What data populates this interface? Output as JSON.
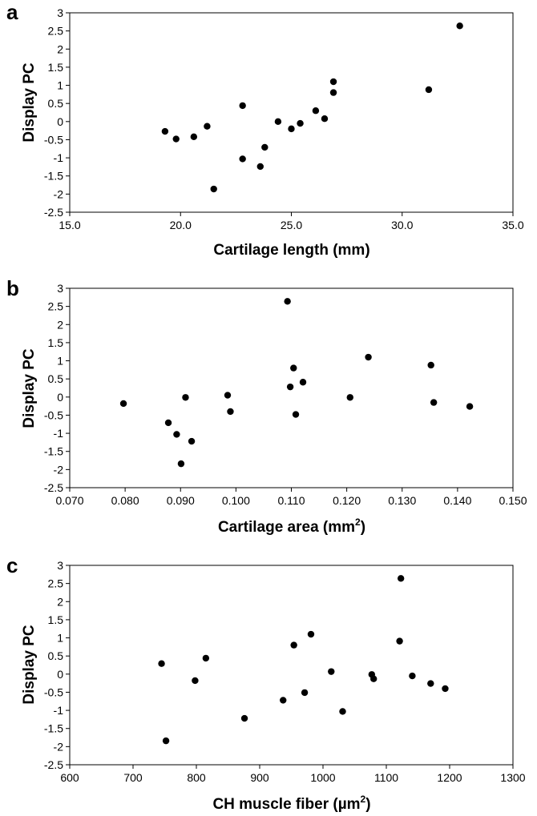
{
  "chart_data": [
    {
      "panel": "a",
      "type": "scatter",
      "xlabel": "Cartilage length (mm)",
      "xlabel_sup": "",
      "xlabel_suffix": "",
      "ylabel": "Display PC",
      "xlim": [
        15.0,
        35.0
      ],
      "ylim": [
        -2.5,
        3
      ],
      "xticks": [
        "15.0",
        "20.0",
        "25.0",
        "30.0",
        "35.0"
      ],
      "yticks": [
        "3",
        "2.5",
        "2",
        "1.5",
        "1",
        "0.5",
        "0",
        "-0.5",
        "-1",
        "-1.5",
        "-2",
        "-2.5"
      ],
      "points": [
        {
          "x": 19.3,
          "y": -0.27
        },
        {
          "x": 19.8,
          "y": -0.48
        },
        {
          "x": 20.6,
          "y": -0.42
        },
        {
          "x": 21.2,
          "y": -0.13
        },
        {
          "x": 21.5,
          "y": -1.86
        },
        {
          "x": 22.8,
          "y": 0.44
        },
        {
          "x": 22.8,
          "y": -1.03
        },
        {
          "x": 23.6,
          "y": -1.24
        },
        {
          "x": 23.8,
          "y": -0.71
        },
        {
          "x": 24.4,
          "y": 0.0
        },
        {
          "x": 25.0,
          "y": -0.2
        },
        {
          "x": 25.4,
          "y": -0.05
        },
        {
          "x": 26.1,
          "y": 0.3
        },
        {
          "x": 26.5,
          "y": 0.08
        },
        {
          "x": 26.9,
          "y": 1.1
        },
        {
          "x": 26.9,
          "y": 0.8
        },
        {
          "x": 31.2,
          "y": 0.88
        },
        {
          "x": 32.6,
          "y": 2.64
        }
      ]
    },
    {
      "panel": "b",
      "type": "scatter",
      "xlabel": "Cartilage area (mm",
      "xlabel_sup": "2",
      "xlabel_suffix": ")",
      "ylabel": "Display PC",
      "xlim": [
        0.07,
        0.15
      ],
      "ylim": [
        -2.5,
        3
      ],
      "xticks": [
        "0.070",
        "0.080",
        "0.090",
        "0.100",
        "0.110",
        "0.120",
        "0.130",
        "0.140",
        "0.150"
      ],
      "yticks": [
        "3",
        "2.5",
        "2",
        "1.5",
        "1",
        "0.5",
        "0",
        "-0.5",
        "-1",
        "-1.5",
        "-2",
        "-2.5"
      ],
      "points": [
        {
          "x": 0.0797,
          "y": -0.18
        },
        {
          "x": 0.0878,
          "y": -0.71
        },
        {
          "x": 0.0893,
          "y": -1.03
        },
        {
          "x": 0.0901,
          "y": -1.84
        },
        {
          "x": 0.0909,
          "y": -0.01
        },
        {
          "x": 0.092,
          "y": -1.22
        },
        {
          "x": 0.0985,
          "y": 0.05
        },
        {
          "x": 0.099,
          "y": -0.4
        },
        {
          "x": 0.1093,
          "y": 2.64
        },
        {
          "x": 0.1098,
          "y": 0.28
        },
        {
          "x": 0.1104,
          "y": 0.8
        },
        {
          "x": 0.1108,
          "y": -0.48
        },
        {
          "x": 0.1121,
          "y": 0.41
        },
        {
          "x": 0.1206,
          "y": -0.01
        },
        {
          "x": 0.1239,
          "y": 1.1
        },
        {
          "x": 0.1352,
          "y": 0.88
        },
        {
          "x": 0.1357,
          "y": -0.15
        },
        {
          "x": 0.1422,
          "y": -0.26
        }
      ]
    },
    {
      "panel": "c",
      "type": "scatter",
      "xlabel": "CH muscle fiber (µm",
      "xlabel_sup": "2",
      "xlabel_suffix": ")",
      "ylabel": "Display PC",
      "xlim": [
        600,
        1300
      ],
      "ylim": [
        -2.5,
        3
      ],
      "xticks": [
        "600",
        "700",
        "800",
        "900",
        "1000",
        "1100",
        "1200",
        "1300"
      ],
      "yticks": [
        "3",
        "2.5",
        "2",
        "1.5",
        "1",
        "0.5",
        "0",
        "-0.5",
        "-1",
        "-1.5",
        "-2",
        "-2.5"
      ],
      "points": [
        {
          "x": 745,
          "y": 0.29
        },
        {
          "x": 752,
          "y": -1.84
        },
        {
          "x": 798,
          "y": -0.18
        },
        {
          "x": 815,
          "y": 0.44
        },
        {
          "x": 876,
          "y": -1.22
        },
        {
          "x": 937,
          "y": -0.72
        },
        {
          "x": 954,
          "y": 0.8
        },
        {
          "x": 971,
          "y": -0.51
        },
        {
          "x": 981,
          "y": 1.1
        },
        {
          "x": 1013,
          "y": 0.07
        },
        {
          "x": 1031,
          "y": -1.03
        },
        {
          "x": 1077,
          "y": -0.01
        },
        {
          "x": 1080,
          "y": -0.13
        },
        {
          "x": 1121,
          "y": 0.91
        },
        {
          "x": 1123,
          "y": 2.64
        },
        {
          "x": 1141,
          "y": -0.05
        },
        {
          "x": 1170,
          "y": -0.26
        },
        {
          "x": 1193,
          "y": -0.4
        }
      ]
    }
  ]
}
